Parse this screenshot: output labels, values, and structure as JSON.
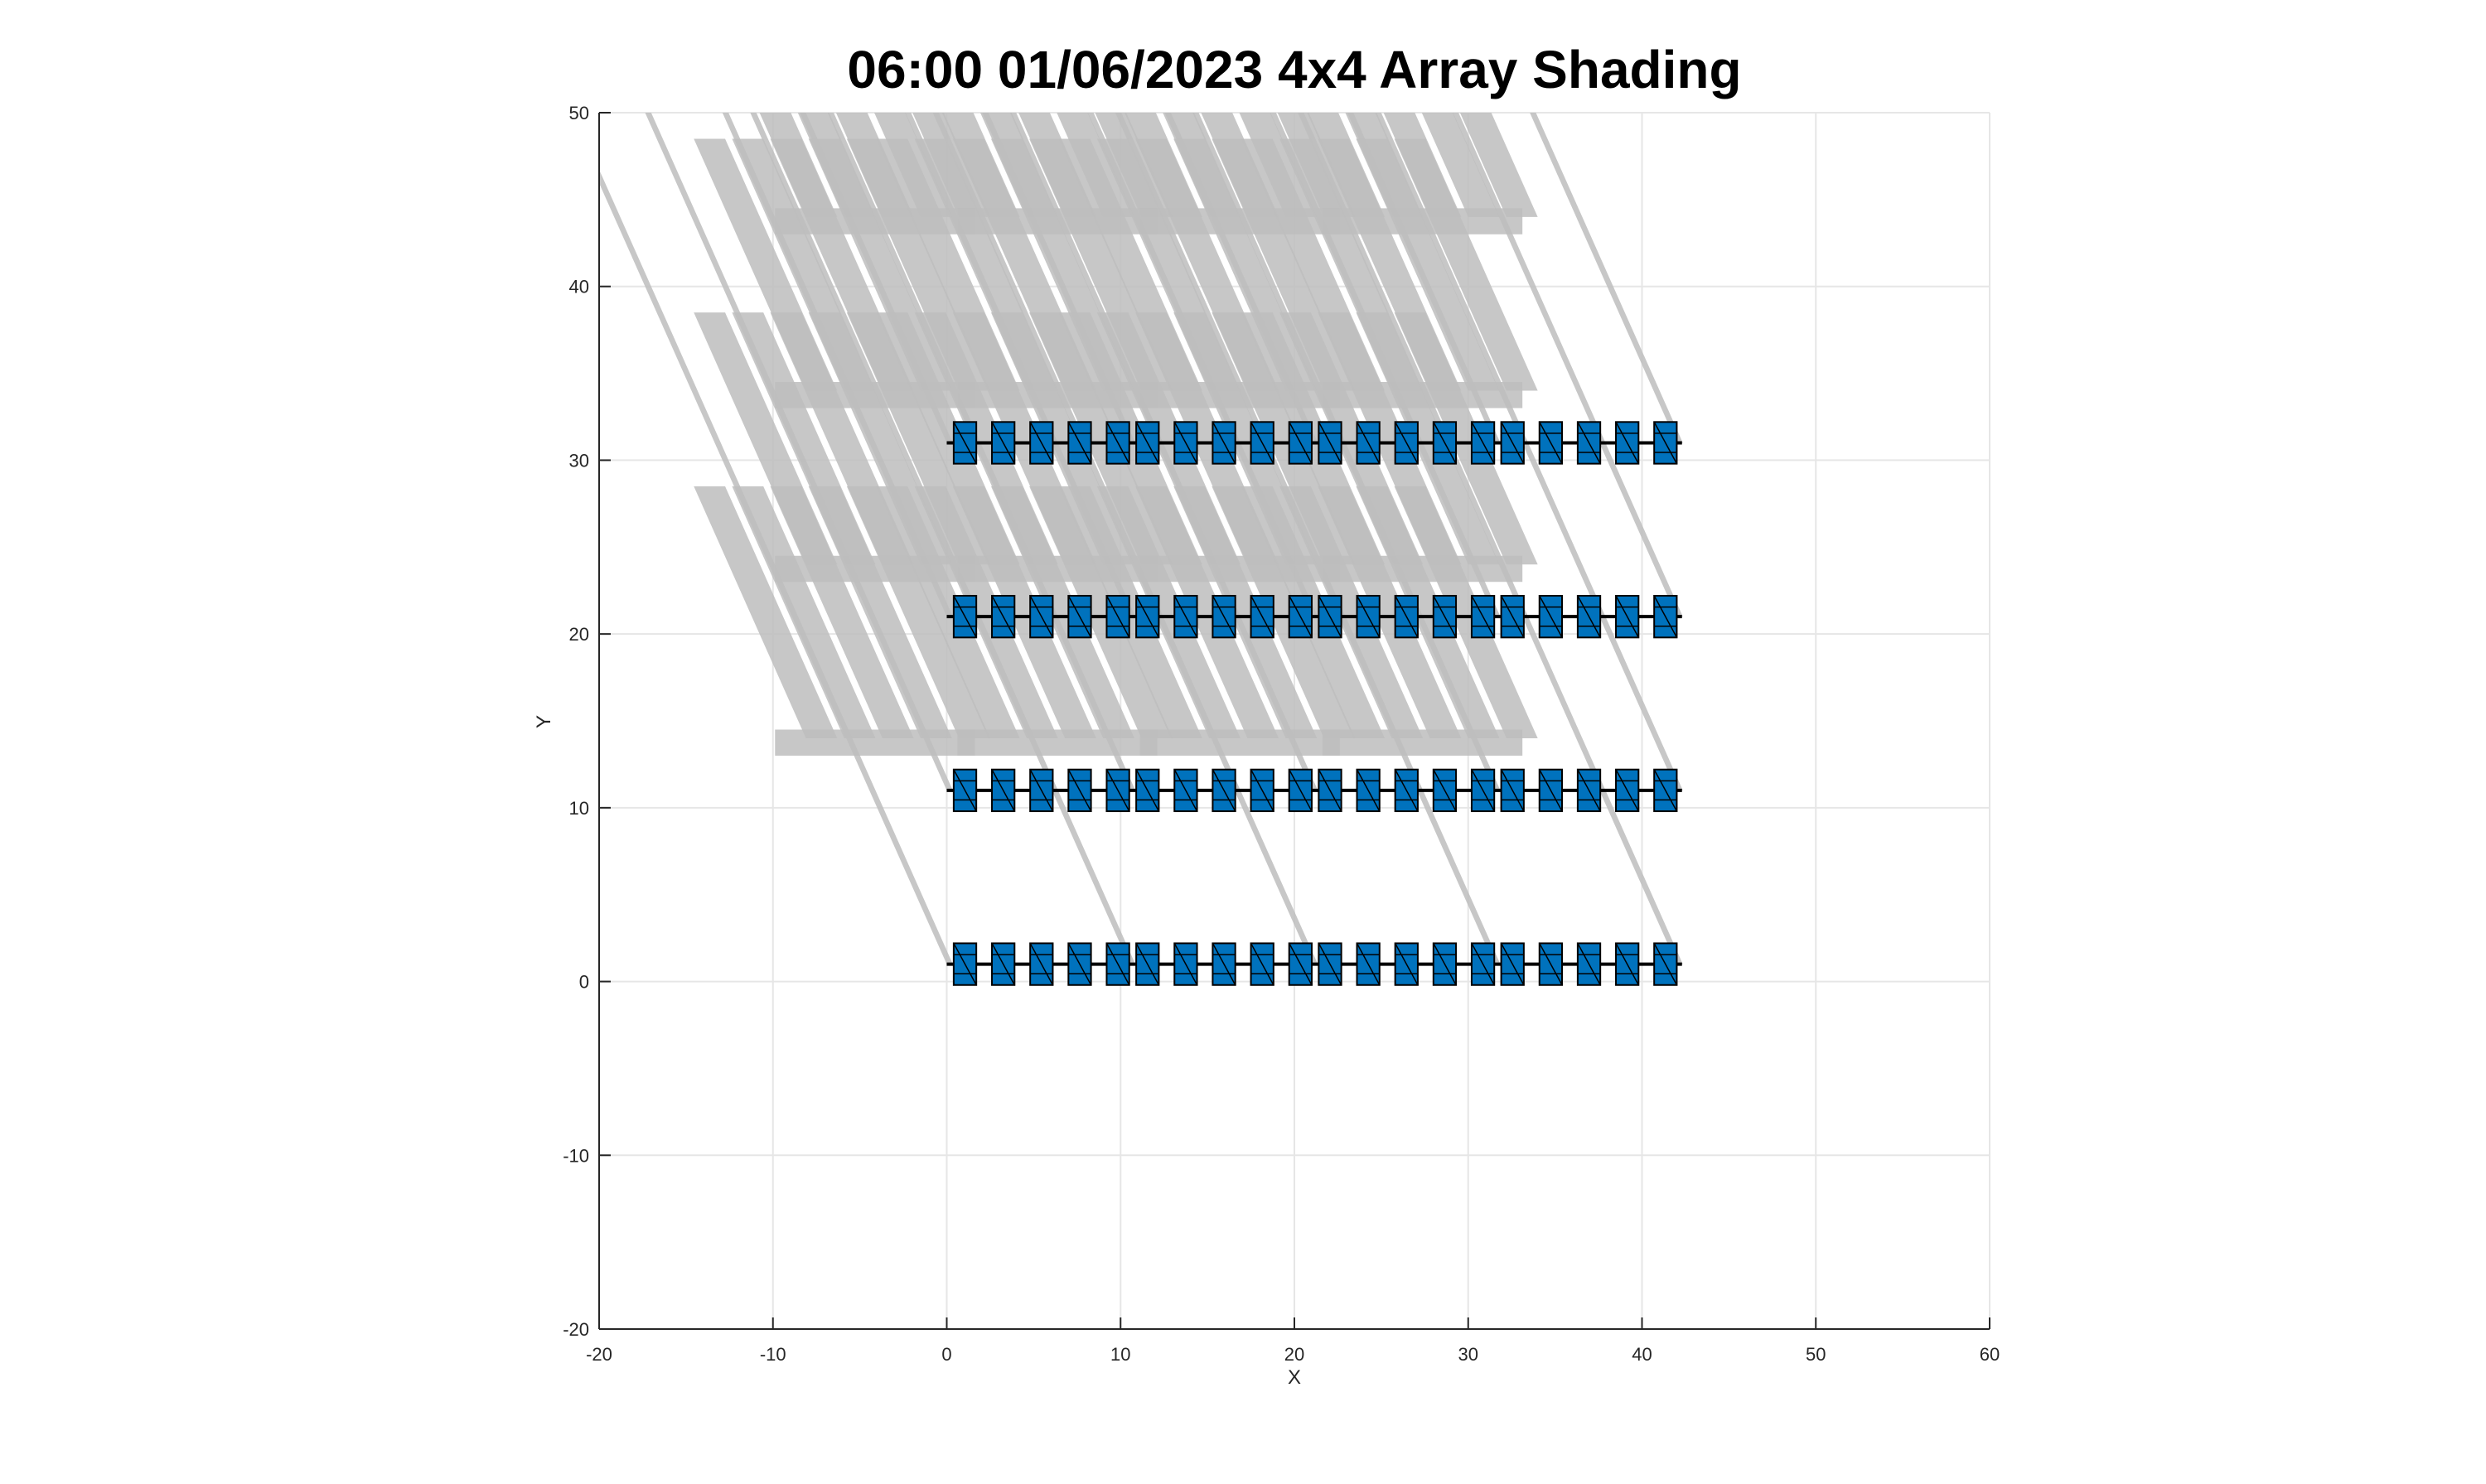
{
  "chart_data": {
    "type": "scatter",
    "title": "06:00 01/06/2023 4x4 Array Shading",
    "xlabel": "X",
    "ylabel": "Y",
    "xlim": [
      -20,
      60
    ],
    "ylim": [
      -20,
      50
    ],
    "xticks": [
      -20,
      -10,
      0,
      10,
      20,
      30,
      40,
      50,
      60
    ],
    "yticks": [
      -20,
      -10,
      0,
      10,
      20,
      30,
      40,
      50
    ],
    "grid": true,
    "colors": {
      "panel_fill": "#0072BD",
      "panel_edge": "#000000",
      "shadow": "#BDBDBD",
      "grid": "#E6E6E6",
      "axis": "#262626"
    },
    "arrays": {
      "rows_y": [
        1,
        11,
        21,
        31
      ],
      "groups_per_row": 4,
      "modules_per_group": 5,
      "group_start_x": [
        0.4,
        10.9,
        21.4,
        31.9
      ],
      "module_spacing": 2.2,
      "module_width": 1.3,
      "module_height": 2.3,
      "torque_tube_x": [
        0,
        42
      ]
    },
    "shadows": {
      "direction_dx_per_dy": -0.445,
      "panel_shadow_length": 14.5,
      "vertical_stretch": 3.0,
      "shadow_y_start_offset": 9.5,
      "post_shadow_top": 50
    }
  }
}
